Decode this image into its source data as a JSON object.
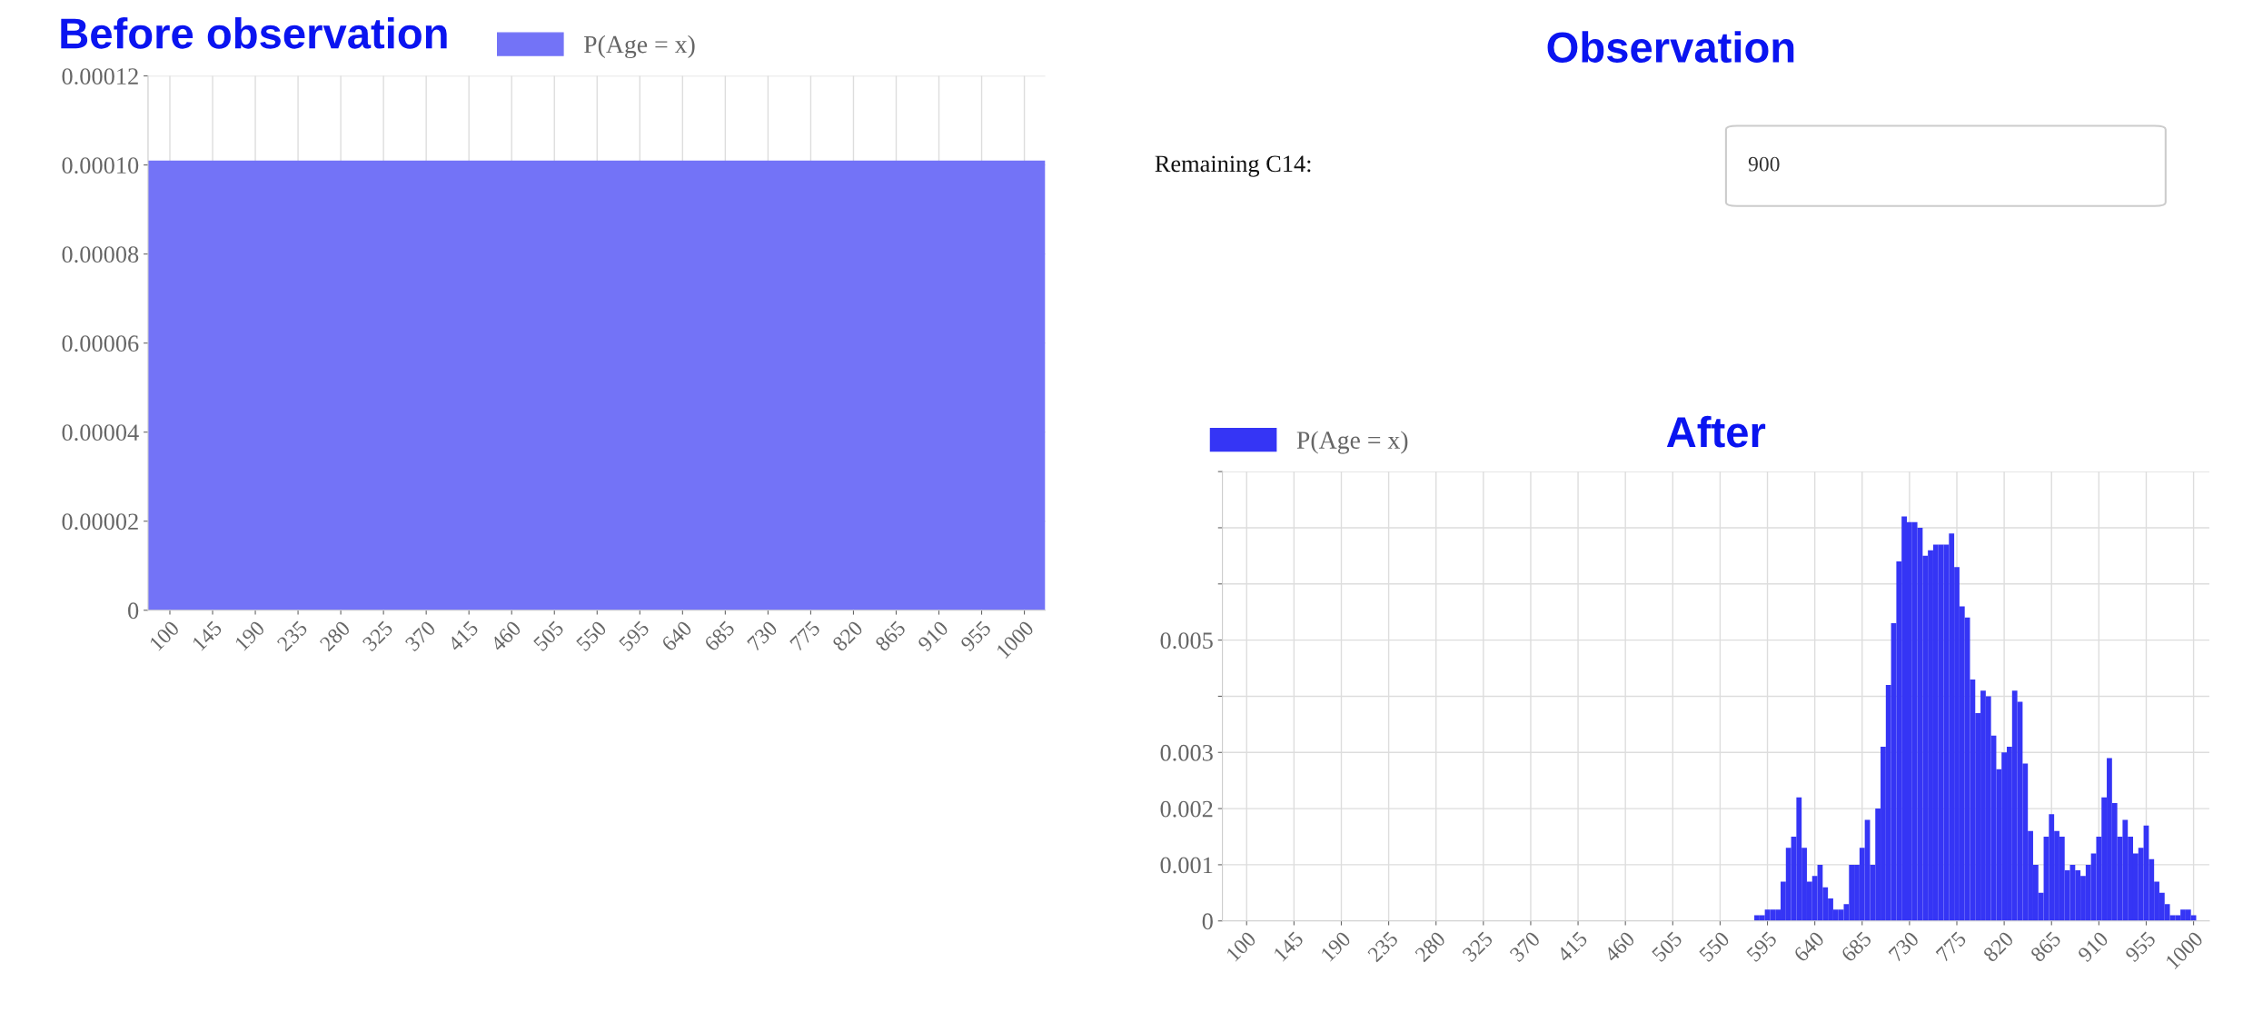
{
  "chart_data": [
    {
      "type": "histogram",
      "title": "Before observation",
      "bins": [
        77,
        1022
      ],
      "xlim": [
        77,
        1022
      ],
      "xticks": [
        100,
        145,
        190,
        235,
        280,
        325,
        370,
        415,
        460,
        505,
        550,
        595,
        640,
        685,
        730,
        775,
        820,
        865,
        910,
        955,
        1000
      ],
      "ylim": [
        0,
        0.00012
      ],
      "yticks": [
        0,
        {
          "value": 2e-05,
          "label": "0.00002"
        },
        {
          "value": 4e-05,
          "label": "0.00004"
        },
        {
          "value": 6e-05,
          "label": "0.00006"
        },
        {
          "value": 8e-05,
          "label": "0.00008"
        },
        {
          "value": 0.0001,
          "label": "0.00010"
        },
        {
          "value": 0.00012,
          "label": "0.00012"
        }
      ],
      "series": [
        {
          "name": "P(Age = x)",
          "color": "#7373f7",
          "values": [
            0.000101
          ]
        }
      ],
      "grid": true,
      "legend": "top"
    },
    {
      "type": "other",
      "title": "Observation",
      "annotations": [
        "Remaining C14:",
        "900"
      ]
    },
    {
      "type": "histogram",
      "title": "After",
      "xlim": [
        77,
        1015
      ],
      "xticks": [
        100,
        145,
        190,
        235,
        280,
        325,
        370,
        415,
        460,
        505,
        550,
        595,
        640,
        685,
        730,
        775,
        820,
        865,
        910,
        955,
        1000
      ],
      "ylim": [
        0,
        0.008
      ],
      "yticks": [
        0,
        0.001,
        0.002,
        0.003,
        {
          "value": 0.004,
          "label": null
        },
        0.005,
        {
          "value": 0.006,
          "label": null
        },
        {
          "value": 0.007,
          "label": null
        },
        {
          "value": 0.008,
          "label": null
        }
      ],
      "bins": [
        582.5,
        587.5,
        592.5,
        597.5,
        602.5,
        607.5,
        612.5,
        617.5,
        622.5,
        627.5,
        632.5,
        637.5,
        642.5,
        647.5,
        652.5,
        657.5,
        662.5,
        667.5,
        672.5,
        677.5,
        682.5,
        687.5,
        692.5,
        697.5,
        702.5,
        707.5,
        712.5,
        717.5,
        722.5,
        727.5,
        732.5,
        737.5,
        742.5,
        747.5,
        752.5,
        757.5,
        762.5,
        767.5,
        772.5,
        777.5,
        782.5,
        787.5,
        792.5,
        797.5,
        802.5,
        807.5,
        812.5,
        817.5,
        822.5,
        827.5,
        832.5,
        837.5,
        842.5,
        847.5,
        852.5,
        857.5,
        862.5,
        867.5,
        872.5,
        877.5,
        882.5,
        887.5,
        892.5,
        897.5,
        902.5,
        907.5,
        912.5,
        917.5,
        922.5,
        927.5,
        932.5,
        937.5,
        942.5,
        947.5,
        952.5,
        957.5,
        962.5,
        967.5,
        972.5,
        977.5,
        982.5,
        987.5,
        992.5,
        997.5,
        1002.5
      ],
      "series": [
        {
          "name": "P(Age = x)",
          "color": "#3535f5",
          "values": [
            0.0001,
            0.0001,
            0.0002,
            0.0002,
            0.0002,
            0.0007,
            0.0013,
            0.0015,
            0.0022,
            0.0013,
            0.0007,
            0.0008,
            0.001,
            0.0006,
            0.0004,
            0.0002,
            0.0002,
            0.0003,
            0.001,
            0.001,
            0.0013,
            0.0018,
            0.001,
            0.002,
            0.0031,
            0.0042,
            0.0053,
            0.0064,
            0.0072,
            0.0071,
            0.0071,
            0.007,
            0.0065,
            0.0066,
            0.0067,
            0.0067,
            0.0067,
            0.0069,
            0.0063,
            0.0056,
            0.0054,
            0.0043,
            0.0037,
            0.0041,
            0.004,
            0.0033,
            0.0027,
            0.003,
            0.0031,
            0.0041,
            0.0039,
            0.0028,
            0.0016,
            0.001,
            0.0005,
            0.0015,
            0.0019,
            0.0016,
            0.0015,
            0.0009,
            0.001,
            0.0009,
            0.0008,
            0.001,
            0.0012,
            0.0015,
            0.0022,
            0.0029,
            0.0021,
            0.0015,
            0.0018,
            0.0015,
            0.0012,
            0.0013,
            0.0017,
            0.0011,
            0.0007,
            0.0005,
            0.0003,
            0.0001,
            0.0001,
            0.0002,
            0.0002,
            0.0001
          ]
        }
      ],
      "grid": true,
      "legend": "top left"
    }
  ]
}
